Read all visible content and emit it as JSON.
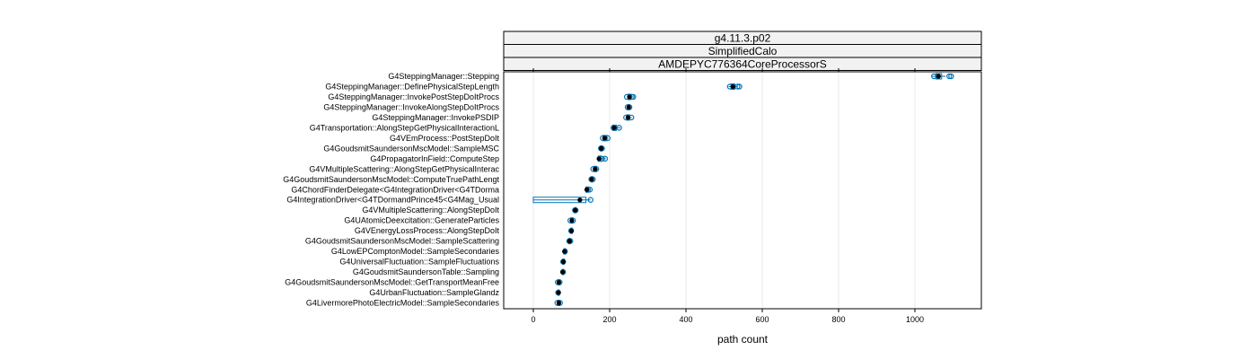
{
  "chart_data": {
    "type": "dotplot",
    "strips": [
      "g4.11.3.p02",
      "SimplifiedCalo",
      "AMDEPYC776364CoreProcessorS"
    ],
    "xlabel": "path count",
    "xlim": [
      -80,
      1170
    ],
    "xticks": [
      0,
      200,
      400,
      600,
      800,
      1000
    ],
    "grid": true,
    "colors": {
      "median": "#000000",
      "point": "#0072b2",
      "box": "#0072b2"
    },
    "categories": [
      "G4SteppingManager::Stepping",
      "G4SteppingManager::DefinePhysicalStepLength",
      "G4SteppingManager::InvokePostStepDoItProcs",
      "G4SteppingManager::InvokeAlongStepDoItProcs",
      "G4SteppingManager::InvokePSDIP",
      "G4Transportation::AlongStepGetPhysicalInteractionL",
      "G4VEmProcess::PostStepDoIt",
      "G4GoudsmitSaundersonMscModel::SampleMSC",
      "G4PropagatorInField::ComputeStep",
      "G4VMultipleScattering::AlongStepGetPhysicalInterac",
      "G4GoudsmitSaundersonMscModel::ComputeTruePathLengt",
      "G4ChordFinderDelegate<G4IntegrationDriver<G4TDorma",
      "G4IntegrationDriver<G4TDormandPrince45<G4Mag_Usual",
      "G4VMultipleScattering::AlongStepDoIt",
      "G4UAtomicDeexcitation::GenerateParticles",
      "G4VEnergyLossProcess::AlongStepDoIt",
      "G4GoudsmitSaundersonMscModel::SampleScattering",
      "G4LowEPComptonModel::SampleSecondaries",
      "G4UniversalFluctuation::SampleFluctuations",
      "G4GoudsmitSaundersonTable::Sampling",
      "G4GoudsmitSaundersonMscModel::GetTransportMeanFree",
      "G4UrbanFluctuation::SampleGlandz",
      "G4LivermorePhotoElectricModel::SampleSecondaries"
    ],
    "series": [
      {
        "median": 1062,
        "box": [
          1055,
          1070
        ],
        "whisker": [
          1045,
          1080
        ],
        "points": [
          1050,
          1060,
          1090,
          1095
        ]
      },
      {
        "median": 523,
        "box": [
          518,
          528
        ],
        "whisker": [
          512,
          535
        ],
        "points": [
          515,
          535,
          540
        ]
      },
      {
        "median": 252,
        "box": [
          248,
          256
        ],
        "whisker": [
          245,
          262
        ],
        "points": [
          245,
          258,
          262
        ]
      },
      {
        "median": 250,
        "box": [
          247,
          253
        ],
        "whisker": [
          245,
          255
        ],
        "points": [
          247,
          252
        ]
      },
      {
        "median": 248,
        "box": [
          245,
          252
        ],
        "whisker": [
          242,
          258
        ],
        "points": [
          243,
          257
        ]
      },
      {
        "median": 212,
        "box": [
          208,
          218
        ],
        "whisker": [
          205,
          228
        ],
        "points": [
          210,
          225
        ]
      },
      {
        "median": 187,
        "box": [
          183,
          193
        ],
        "whisker": [
          180,
          197
        ],
        "points": [
          182,
          195
        ]
      },
      {
        "median": 178,
        "box": [
          176,
          180
        ],
        "whisker": [
          174,
          182
        ],
        "points": [
          177,
          180
        ]
      },
      {
        "median": 172,
        "box": [
          170,
          178
        ],
        "whisker": [
          168,
          190
        ],
        "points": [
          180,
          188
        ]
      },
      {
        "median": 162,
        "box": [
          158,
          166
        ],
        "whisker": [
          155,
          170
        ],
        "points": [
          157,
          165
        ]
      },
      {
        "median": 153,
        "box": [
          151,
          156
        ],
        "whisker": [
          149,
          158
        ],
        "points": [
          152,
          156
        ]
      },
      {
        "median": 140,
        "box": [
          138,
          145
        ],
        "whisker": [
          135,
          150
        ],
        "points": [
          143,
          148
        ]
      },
      {
        "median": 122,
        "box": [
          0,
          138
        ],
        "whisker": [
          0,
          150
        ],
        "points": [
          150
        ]
      },
      {
        "median": 110,
        "box": [
          108,
          112
        ],
        "whisker": [
          107,
          113
        ],
        "points": [
          109,
          111
        ]
      },
      {
        "median": 101,
        "box": [
          98,
          104
        ],
        "whisker": [
          95,
          106
        ],
        "points": [
          97,
          104
        ]
      },
      {
        "median": 100,
        "box": [
          98,
          102
        ],
        "whisker": [
          97,
          103
        ],
        "points": [
          99
        ]
      },
      {
        "median": 95,
        "box": [
          93,
          97
        ],
        "whisker": [
          92,
          98
        ],
        "points": [
          94,
          97
        ]
      },
      {
        "median": 82,
        "box": [
          80,
          85
        ],
        "whisker": [
          78,
          86
        ],
        "points": [
          83
        ]
      },
      {
        "median": 79,
        "box": [
          77,
          81
        ],
        "whisker": [
          76,
          82
        ],
        "points": [
          78
        ]
      },
      {
        "median": 77,
        "box": [
          76,
          79
        ],
        "whisker": [
          75,
          80
        ],
        "points": [
          78
        ]
      },
      {
        "median": 67,
        "box": [
          64,
          70
        ],
        "whisker": [
          62,
          72
        ],
        "points": [
          64,
          69
        ]
      },
      {
        "median": 66,
        "box": [
          64,
          68
        ],
        "whisker": [
          63,
          69
        ],
        "points": [
          65
        ]
      },
      {
        "median": 67,
        "box": [
          63,
          70
        ],
        "whisker": [
          61,
          72
        ],
        "points": [
          63,
          70
        ]
      }
    ]
  }
}
